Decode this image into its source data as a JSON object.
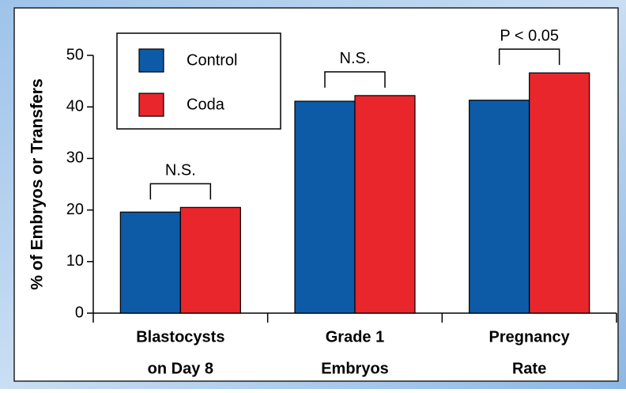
{
  "chart_data": {
    "type": "bar",
    "ylabel": "% of Embryos or Transfers",
    "categories": [
      [
        "Blastocysts",
        "on Day 8"
      ],
      [
        "Grade 1",
        "Embryos"
      ],
      [
        "Pregnancy",
        "Rate"
      ]
    ],
    "series": [
      {
        "name": "Control",
        "color": "#0d5aa7",
        "values": [
          19.6,
          41.1,
          41.3
        ]
      },
      {
        "name": "Coda",
        "color": "#e8262b",
        "values": [
          20.5,
          42.2,
          46.6
        ]
      }
    ],
    "annotations": [
      "N.S.",
      "N.S.",
      "P < 0.05"
    ],
    "ylim": [
      0,
      50
    ],
    "yticks": [
      0,
      10,
      20,
      30,
      40,
      50
    ]
  }
}
